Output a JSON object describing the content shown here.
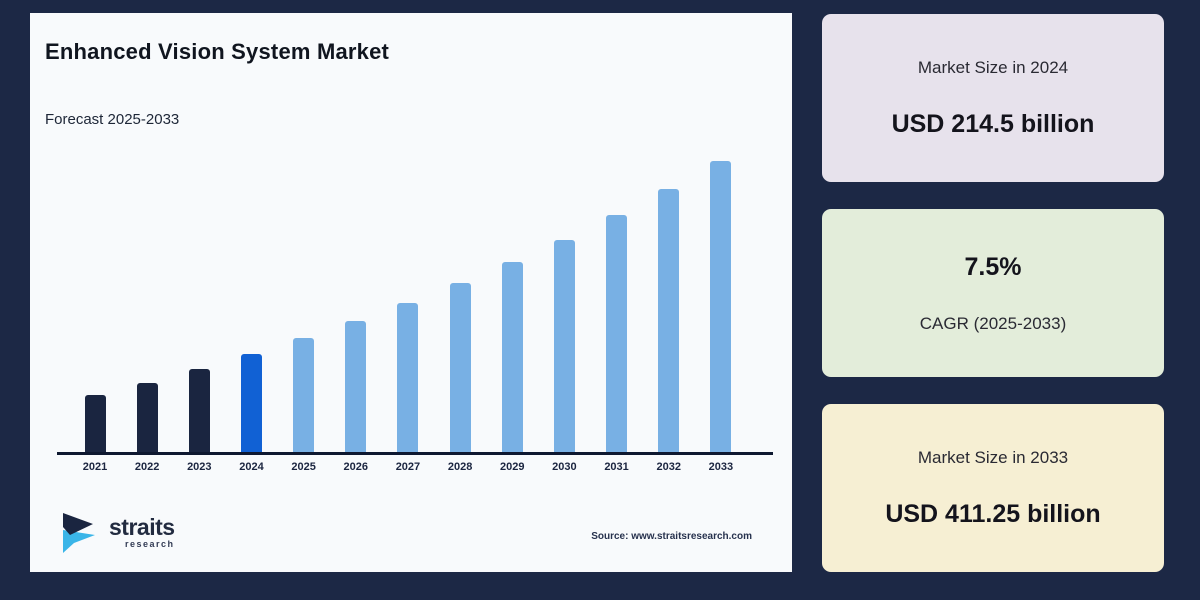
{
  "chart_panel": {
    "title": "Enhanced Vision System Market",
    "subtitle": "Forecast 2025-2033",
    "source_note": "Source: www.straitsresearch.com",
    "logo": {
      "brand": "straits",
      "sub": "research"
    }
  },
  "chart_data": {
    "type": "bar",
    "title": "Enhanced Vision System Market",
    "xlabel": "",
    "ylabel": "",
    "unit": "USD billion",
    "categories": [
      "2021",
      "2022",
      "2023",
      "2024",
      "2025",
      "2026",
      "2027",
      "2028",
      "2029",
      "2030",
      "2031",
      "2032",
      "2033"
    ],
    "values": [
      172.66,
      185.61,
      199.53,
      214.5,
      230.59,
      247.88,
      266.47,
      286.46,
      307.94,
      331.04,
      355.86,
      382.55,
      411.25
    ],
    "anchors": {
      "2024": 214.5,
      "2033": 411.25,
      "cagr_pct": 7.5
    },
    "values_estimated_from_cagr": true,
    "ylim": [
      115,
      420
    ],
    "grid": false,
    "legend": false,
    "colors": {
      "historical": "#1a2540",
      "base_year": "#1161d4",
      "forecast": "#78b0e4"
    },
    "color_map": [
      "historical",
      "historical",
      "historical",
      "base_year",
      "forecast",
      "forecast",
      "forecast",
      "forecast",
      "forecast",
      "forecast",
      "forecast",
      "forecast",
      "forecast"
    ]
  },
  "cards": [
    {
      "label": "Market Size in 2024",
      "value": "USD 214.5 billion",
      "background": "#e7e2ec"
    },
    {
      "value": "7.5%",
      "label": "CAGR (2025-2033)",
      "background": "#e3edda"
    },
    {
      "label": "Market Size in 2033",
      "value": "USD 411.25 billion",
      "background": "#f6efd3"
    }
  ],
  "theme": {
    "page_background": "#1c2845",
    "panel_background": "#f8fafc",
    "axis_color": "#0e1830",
    "logo_dark": "#1a2540",
    "logo_cyan": "#3ab5e8"
  }
}
